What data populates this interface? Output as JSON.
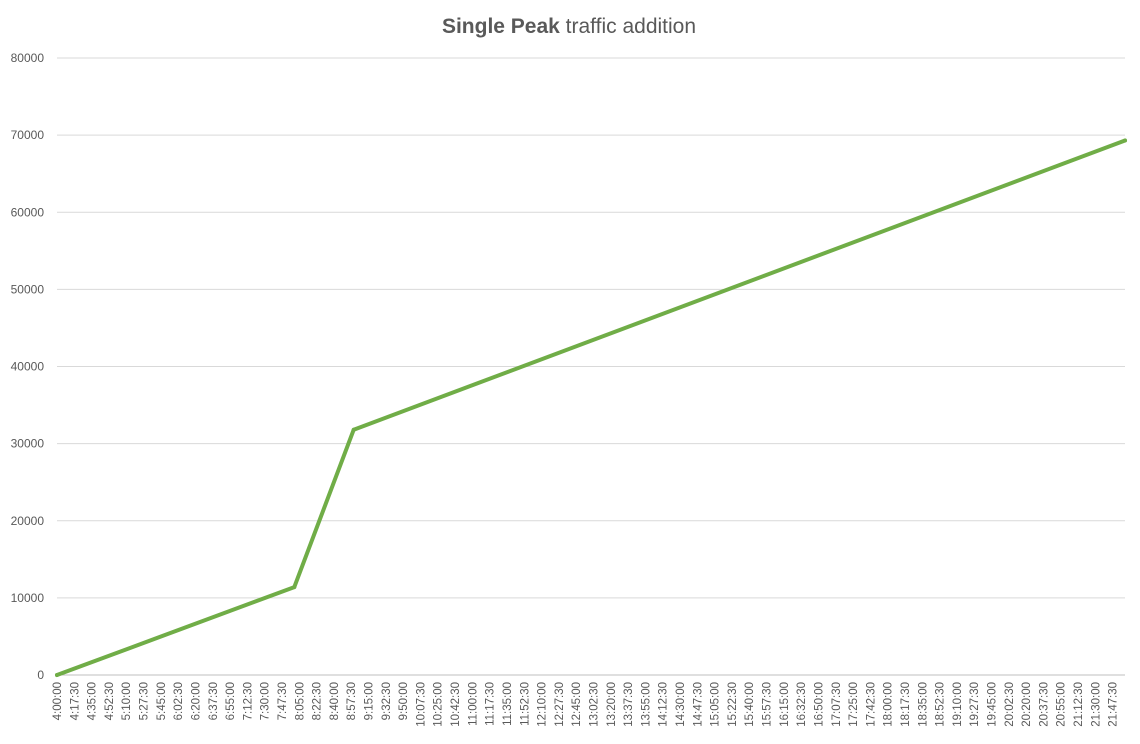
{
  "chart_data": {
    "type": "line",
    "title_bold": "Single Peak",
    "title_rest": " traffic addition",
    "xlabel": "",
    "ylabel": "",
    "ylim": [
      0,
      80000
    ],
    "yticks": [
      0,
      10000,
      20000,
      30000,
      40000,
      50000,
      60000,
      70000,
      80000
    ],
    "grid": true,
    "legend": "none",
    "series_color": "#70ad47",
    "x_start": "4:00:00",
    "x_end": "22:00:00",
    "x_tick_labels": [
      "4:00:00",
      "4:17:30",
      "4:35:00",
      "4:52:30",
      "5:10:00",
      "5:27:30",
      "5:45:00",
      "6:02:30",
      "6:20:00",
      "6:37:30",
      "6:55:00",
      "7:12:30",
      "7:30:00",
      "7:47:30",
      "8:05:00",
      "8:22:30",
      "8:40:00",
      "8:57:30",
      "9:15:00",
      "9:32:30",
      "9:50:00",
      "10:07:30",
      "10:25:00",
      "10:42:30",
      "11:00:00",
      "11:17:30",
      "11:35:00",
      "11:52:30",
      "12:10:00",
      "12:27:30",
      "12:45:00",
      "13:02:30",
      "13:20:00",
      "13:37:30",
      "13:55:00",
      "14:12:30",
      "14:30:00",
      "14:47:30",
      "15:05:00",
      "15:22:30",
      "15:40:00",
      "15:57:30",
      "16:15:00",
      "16:32:30",
      "16:50:00",
      "17:07:30",
      "17:25:00",
      "17:42:30",
      "18:00:00",
      "18:17:30",
      "18:35:00",
      "18:52:30",
      "19:10:00",
      "19:27:30",
      "19:45:00",
      "20:02:30",
      "20:20:00",
      "20:37:30",
      "20:55:00",
      "21:12:30",
      "21:30:00",
      "21:47:30"
    ],
    "series": [
      {
        "x": [
          "4:00:00",
          "8:00:00",
          "9:00:00",
          "22:00:00"
        ],
        "values": [
          0,
          11400,
          31800,
          69300
        ]
      }
    ]
  }
}
